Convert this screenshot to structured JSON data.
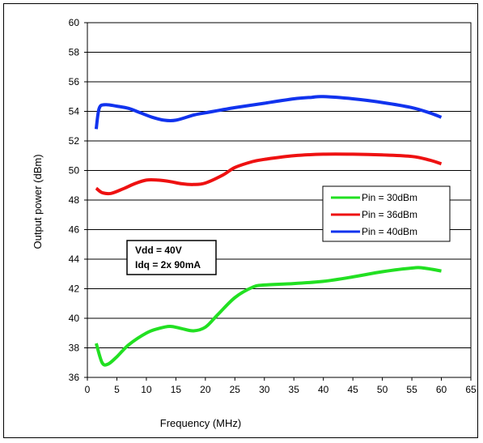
{
  "chart_data": {
    "type": "line",
    "title": "",
    "xlabel": "Frequency (MHz)",
    "ylabel": "Output power (dBm)",
    "xlim": [
      0,
      65
    ],
    "ylim": [
      36,
      60
    ],
    "xticks": [
      0,
      5,
      10,
      15,
      20,
      25,
      30,
      35,
      40,
      45,
      50,
      55,
      60,
      65
    ],
    "yticks": [
      36,
      38,
      40,
      42,
      44,
      46,
      48,
      50,
      52,
      54,
      56,
      58,
      60
    ],
    "grid": "horizontal",
    "legend_position": "right",
    "annotation": [
      "Vdd = 40V",
      "Idq = 2x 90mA"
    ],
    "series": [
      {
        "name": "Pin = 30dBm",
        "color": "#22e022",
        "points": [
          [
            1.5,
            38.3
          ],
          [
            2.5,
            37.0
          ],
          [
            3.5,
            36.9
          ],
          [
            5,
            37.4
          ],
          [
            7,
            38.2
          ],
          [
            10,
            39.0
          ],
          [
            12,
            39.3
          ],
          [
            14,
            39.45
          ],
          [
            16,
            39.3
          ],
          [
            18,
            39.15
          ],
          [
            20,
            39.4
          ],
          [
            22,
            40.2
          ],
          [
            25,
            41.4
          ],
          [
            28,
            42.1
          ],
          [
            30,
            42.25
          ],
          [
            35,
            42.35
          ],
          [
            40,
            42.5
          ],
          [
            45,
            42.8
          ],
          [
            50,
            43.15
          ],
          [
            55,
            43.4
          ],
          [
            57,
            43.4
          ],
          [
            60,
            43.2
          ]
        ]
      },
      {
        "name": "Pin = 36dBm",
        "color": "#ee1111",
        "points": [
          [
            1.5,
            48.8
          ],
          [
            2.5,
            48.5
          ],
          [
            4,
            48.45
          ],
          [
            6,
            48.75
          ],
          [
            8,
            49.1
          ],
          [
            10,
            49.35
          ],
          [
            12,
            49.35
          ],
          [
            14,
            49.25
          ],
          [
            16,
            49.1
          ],
          [
            18,
            49.05
          ],
          [
            20,
            49.15
          ],
          [
            23,
            49.7
          ],
          [
            25,
            50.2
          ],
          [
            28,
            50.6
          ],
          [
            30,
            50.75
          ],
          [
            35,
            51.0
          ],
          [
            40,
            51.1
          ],
          [
            45,
            51.1
          ],
          [
            50,
            51.05
          ],
          [
            55,
            50.95
          ],
          [
            58,
            50.7
          ],
          [
            60,
            50.45
          ]
        ]
      },
      {
        "name": "Pin = 40dBm",
        "color": "#1133ee",
        "points": [
          [
            1.5,
            52.8
          ],
          [
            2,
            54.2
          ],
          [
            3,
            54.45
          ],
          [
            5,
            54.35
          ],
          [
            7,
            54.2
          ],
          [
            9,
            53.9
          ],
          [
            11,
            53.6
          ],
          [
            13,
            53.4
          ],
          [
            15,
            53.4
          ],
          [
            18,
            53.75
          ],
          [
            20,
            53.9
          ],
          [
            25,
            54.25
          ],
          [
            30,
            54.55
          ],
          [
            35,
            54.85
          ],
          [
            38,
            54.95
          ],
          [
            40,
            55.0
          ],
          [
            45,
            54.85
          ],
          [
            50,
            54.6
          ],
          [
            55,
            54.25
          ],
          [
            58,
            53.9
          ],
          [
            60,
            53.6
          ]
        ]
      }
    ]
  }
}
